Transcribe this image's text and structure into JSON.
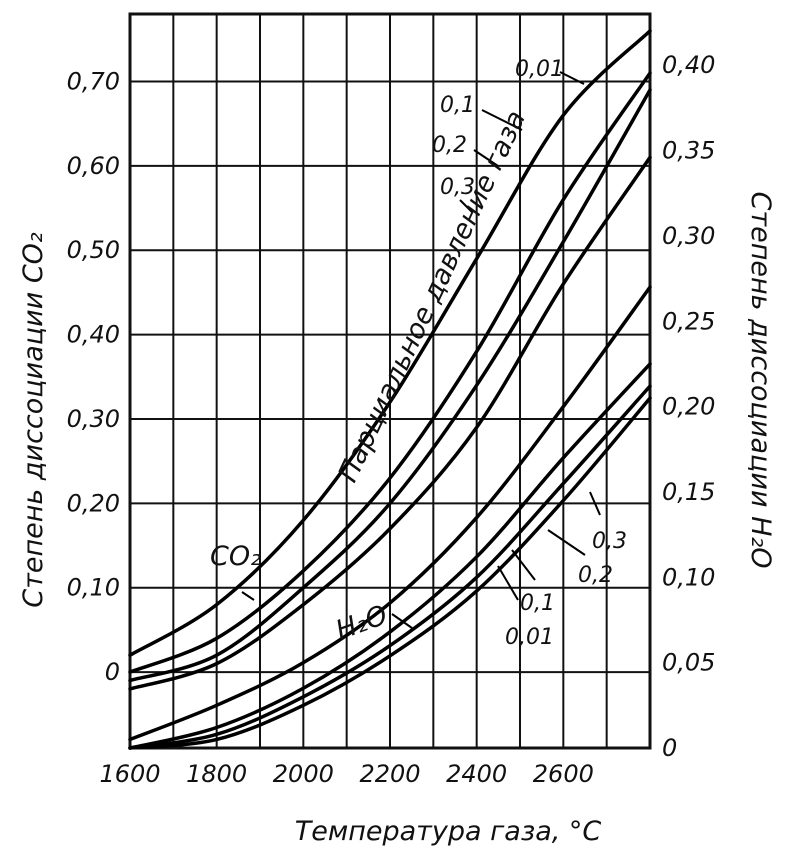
{
  "chart_data": {
    "type": "line",
    "xlabel": "Температура газа, °С",
    "ylabel_left": "Степень диссоциации CO₂",
    "ylabel_right": "Степень диссоциации H₂O",
    "x_ticks": [
      "1600",
      "1800",
      "2000",
      "2200",
      "2400",
      "2600"
    ],
    "y_left_ticks": [
      "0",
      "0,10",
      "0,20",
      "0,30",
      "0,40",
      "0,50",
      "0,60",
      "0,70"
    ],
    "y_right_ticks": [
      "0",
      "0,05",
      "0,10",
      "0,15",
      "0,20",
      "0,25",
      "0,30",
      "0,35",
      "0,40"
    ],
    "xlim": [
      1600,
      2800
    ],
    "ylim_left": [
      -0.09,
      0.78
    ],
    "ylim_right": [
      0,
      0.43
    ],
    "annotations": {
      "pressure": "Парциальное давление газа",
      "co2": "CO₂",
      "h2o": "H₂O",
      "co2_p001": "0,01",
      "co2_p01": "0,1",
      "co2_p02": "0,2",
      "co2_p03": "0,3",
      "h2o_p001": "0,01",
      "h2o_p01": "0,1",
      "h2o_p02": "0,2",
      "h2o_p03": "0,3"
    },
    "series": [
      {
        "gas": "CO2",
        "axis": "left",
        "pressure": "0,01",
        "x": [
          1600,
          1800,
          2000,
          2200,
          2400,
          2600,
          2800
        ],
        "values": [
          0.02,
          0.08,
          0.18,
          0.32,
          0.49,
          0.66,
          0.76
        ]
      },
      {
        "gas": "CO2",
        "axis": "left",
        "pressure": "0,1",
        "x": [
          1600,
          1800,
          2000,
          2200,
          2400,
          2600,
          2800
        ],
        "values": [
          0.0,
          0.04,
          0.12,
          0.23,
          0.38,
          0.56,
          0.71
        ]
      },
      {
        "gas": "CO2",
        "axis": "left",
        "pressure": "0,2",
        "x": [
          1600,
          1800,
          2000,
          2200,
          2400,
          2600,
          2800
        ],
        "values": [
          -0.01,
          0.02,
          0.1,
          0.2,
          0.34,
          0.51,
          0.69
        ]
      },
      {
        "gas": "CO2",
        "axis": "left",
        "pressure": "0,3",
        "x": [
          1600,
          1800,
          2000,
          2200,
          2400,
          2600,
          2800
        ],
        "values": [
          -0.02,
          0.01,
          0.08,
          0.17,
          0.29,
          0.46,
          0.61
        ]
      },
      {
        "gas": "H2O",
        "axis": "right",
        "pressure": "0,01",
        "x": [
          1600,
          1800,
          2000,
          2200,
          2400,
          2600,
          2800
        ],
        "values": [
          0.005,
          0.025,
          0.05,
          0.085,
          0.135,
          0.2,
          0.27
        ]
      },
      {
        "gas": "H2O",
        "axis": "right",
        "pressure": "0,1",
        "x": [
          1600,
          1800,
          2000,
          2200,
          2400,
          2600,
          2800
        ],
        "values": [
          0.0,
          0.012,
          0.035,
          0.068,
          0.112,
          0.17,
          0.225
        ]
      },
      {
        "gas": "H2O",
        "axis": "right",
        "pressure": "0,2",
        "x": [
          1600,
          1800,
          2000,
          2200,
          2400,
          2600,
          2800
        ],
        "values": [
          0.0,
          0.008,
          0.03,
          0.06,
          0.1,
          0.155,
          0.212
        ]
      },
      {
        "gas": "H2O",
        "axis": "right",
        "pressure": "0,3",
        "x": [
          1600,
          1800,
          2000,
          2200,
          2400,
          2600,
          2800
        ],
        "values": [
          0.0,
          0.005,
          0.025,
          0.054,
          0.092,
          0.145,
          0.205
        ]
      }
    ]
  }
}
